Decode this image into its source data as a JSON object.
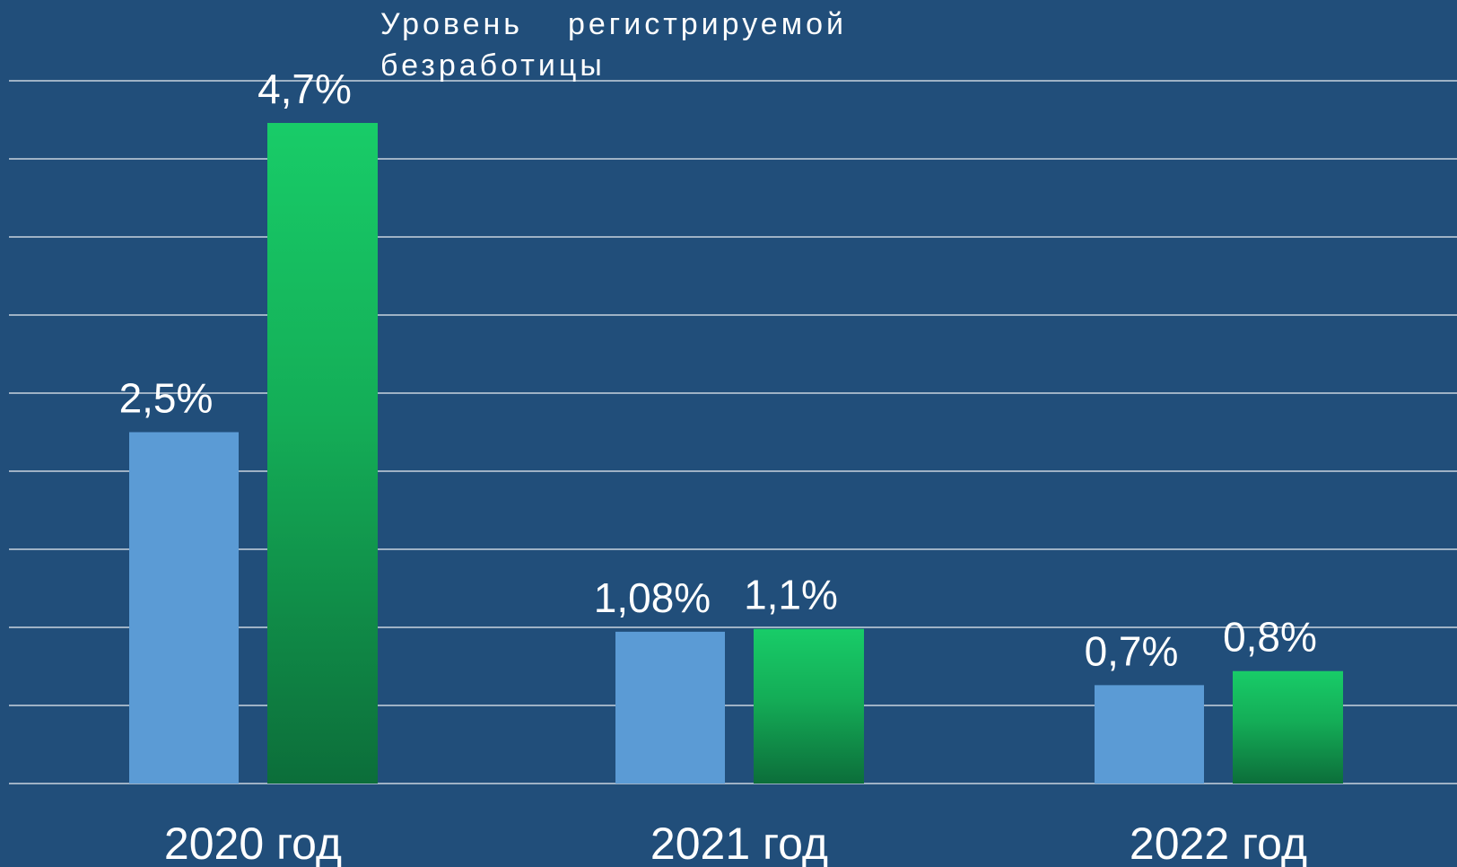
{
  "chart_data": {
    "type": "bar",
    "title": "Уровень регистрируемой безработицы",
    "categories": [
      "2020 год",
      "2021 год",
      "2022 год"
    ],
    "series": [
      {
        "color": "#5b9bd5",
        "values": [
          2.5,
          1.08,
          0.7
        ],
        "value_labels": [
          "2,5%",
          "1,08%",
          "0,7%"
        ]
      },
      {
        "color": "#17c966",
        "values": [
          4.7,
          1.1,
          0.8
        ],
        "value_labels": [
          "4,7%",
          "1,1%",
          "0,8%"
        ]
      }
    ],
    "ylim": [
      0,
      5
    ]
  }
}
